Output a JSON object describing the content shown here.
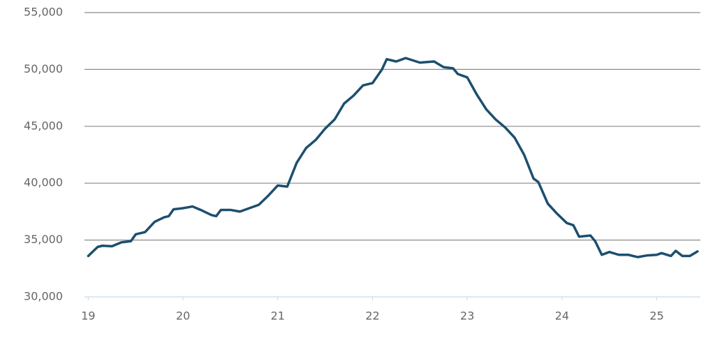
{
  "chart_data": {
    "type": "line",
    "x": [
      19,
      19.1,
      19.15,
      19.25,
      19.35,
      19.45,
      19.5,
      19.6,
      19.7,
      19.8,
      19.85,
      19.9,
      20,
      20.1,
      20.2,
      20.3,
      20.35,
      20.4,
      20.5,
      20.6,
      20.7,
      20.8,
      20.9,
      21,
      21.1,
      21.2,
      21.3,
      21.4,
      21.5,
      21.6,
      21.7,
      21.8,
      21.9,
      22,
      22.1,
      22.15,
      22.25,
      22.35,
      22.5,
      22.65,
      22.75,
      22.85,
      22.9,
      23,
      23.1,
      23.2,
      23.3,
      23.4,
      23.5,
      23.6,
      23.7,
      23.75,
      23.85,
      23.95,
      24.05,
      24.12,
      24.18,
      24.3,
      24.35,
      24.42,
      24.5,
      24.6,
      24.7,
      24.8,
      24.9,
      25,
      25.05,
      25.15,
      25.2,
      25.27,
      25.35,
      25.43
    ],
    "series": [
      {
        "color": "#1c4f6e",
        "values": [
          33600,
          34400,
          34500,
          34450,
          34800,
          34900,
          35500,
          35700,
          36600,
          37000,
          37100,
          37700,
          37800,
          37950,
          37600,
          37200,
          37100,
          37650,
          37650,
          37500,
          37800,
          38100,
          38900,
          39800,
          39700,
          41800,
          43100,
          43800,
          44800,
          45600,
          47000,
          47700,
          48600,
          48800,
          50000,
          50900,
          50700,
          51000,
          50600,
          50700,
          50200,
          50100,
          49600,
          49300,
          47800,
          46500,
          45600,
          44900,
          44000,
          42500,
          40400,
          40100,
          38200,
          37300,
          36500,
          36300,
          35300,
          35400,
          34900,
          33700,
          33950,
          33700,
          33700,
          33500,
          33650,
          33700,
          33850,
          33600,
          34050,
          33600,
          33600,
          34000
        ]
      }
    ],
    "xlim": [
      18.96,
      25.46
    ],
    "xticks": [
      19,
      20,
      21,
      22,
      23,
      24,
      25
    ],
    "ylim": [
      30000,
      55000
    ],
    "yticks": [
      {
        "value": 30000,
        "label": "30,000"
      },
      {
        "value": 35000,
        "label": "35,000"
      },
      {
        "value": 40000,
        "label": "40,000"
      },
      {
        "value": 45000,
        "label": "45,000"
      },
      {
        "value": 50000,
        "label": "50,000"
      },
      {
        "value": 55000,
        "label": "55,000"
      }
    ],
    "grid": true
  }
}
